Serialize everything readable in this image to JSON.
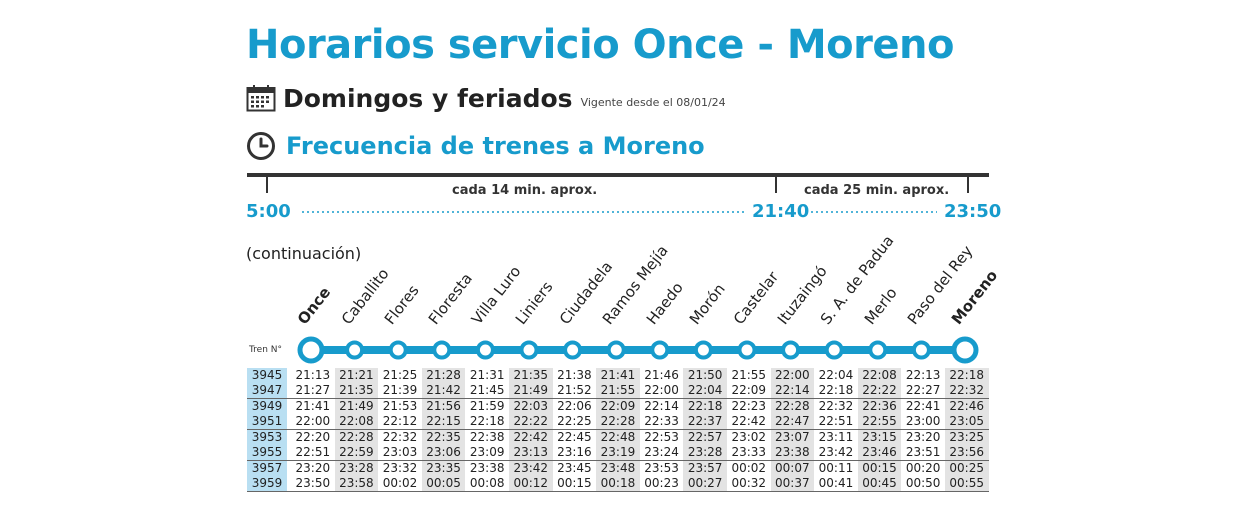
{
  "title": "Horarios servicio Once - Moreno",
  "subtitle": "Domingos y feriados",
  "vigente": "Vigente desde el 08/01/24",
  "frequency_title": "Frecuencia de trenes a Moreno",
  "timeline": {
    "start": "5:00",
    "mid": "21:40",
    "end": "23:50",
    "segment1_label": "cada 14 min. aprox.",
    "segment2_label": "cada 25 min. aprox."
  },
  "continuacion": "(continuación)",
  "tren_label": "Tren N°",
  "colors": {
    "accent": "#179bcc",
    "train_cell": "#b9dff2",
    "shade": "#e3e3e3"
  },
  "icons": {
    "calendar": "calendar-icon",
    "clock": "clock-icon"
  },
  "stations": [
    "Once",
    "Caballito",
    "Flores",
    "Floresta",
    "Villa Luro",
    "Liniers",
    "Ciudadela",
    "Ramos Mejía",
    "Haedo",
    "Morón",
    "Castelar",
    "Ituzaingó",
    "S. A. de Padua",
    "Merlo",
    "Paso del Rey",
    "Moreno"
  ],
  "trains": [
    {
      "number": "3945",
      "times": [
        "21:13",
        "21:21",
        "21:25",
        "21:28",
        "21:31",
        "21:35",
        "21:38",
        "21:41",
        "21:46",
        "21:50",
        "21:55",
        "22:00",
        "22:04",
        "22:08",
        "22:13",
        "22:18"
      ]
    },
    {
      "number": "3947",
      "times": [
        "21:27",
        "21:35",
        "21:39",
        "21:42",
        "21:45",
        "21:49",
        "21:52",
        "21:55",
        "22:00",
        "22:04",
        "22:09",
        "22:14",
        "22:18",
        "22:22",
        "22:27",
        "22:32"
      ]
    },
    {
      "number": "3949",
      "times": [
        "21:41",
        "21:49",
        "21:53",
        "21:56",
        "21:59",
        "22:03",
        "22:06",
        "22:09",
        "22:14",
        "22:18",
        "22:23",
        "22:28",
        "22:32",
        "22:36",
        "22:41",
        "22:46"
      ]
    },
    {
      "number": "3951",
      "times": [
        "22:00",
        "22:08",
        "22:12",
        "22:15",
        "22:18",
        "22:22",
        "22:25",
        "22:28",
        "22:33",
        "22:37",
        "22:42",
        "22:47",
        "22:51",
        "22:55",
        "23:00",
        "23:05"
      ]
    },
    {
      "number": "3953",
      "times": [
        "22:20",
        "22:28",
        "22:32",
        "22:35",
        "22:38",
        "22:42",
        "22:45",
        "22:48",
        "22:53",
        "22:57",
        "23:02",
        "23:07",
        "23:11",
        "23:15",
        "23:20",
        "23:25"
      ]
    },
    {
      "number": "3955",
      "times": [
        "22:51",
        "22:59",
        "23:03",
        "23:06",
        "23:09",
        "23:13",
        "23:16",
        "23:19",
        "23:24",
        "23:28",
        "23:33",
        "23:38",
        "23:42",
        "23:46",
        "23:51",
        "23:56"
      ]
    },
    {
      "number": "3957",
      "times": [
        "23:20",
        "23:28",
        "23:32",
        "23:35",
        "23:38",
        "23:42",
        "23:45",
        "23:48",
        "23:53",
        "23:57",
        "00:02",
        "00:07",
        "00:11",
        "00:15",
        "00:20",
        "00:25"
      ]
    },
    {
      "number": "3959",
      "times": [
        "23:50",
        "23:58",
        "00:02",
        "00:05",
        "00:08",
        "00:12",
        "00:15",
        "00:18",
        "00:23",
        "00:27",
        "00:32",
        "00:37",
        "00:41",
        "00:45",
        "00:50",
        "00:55"
      ]
    }
  ]
}
